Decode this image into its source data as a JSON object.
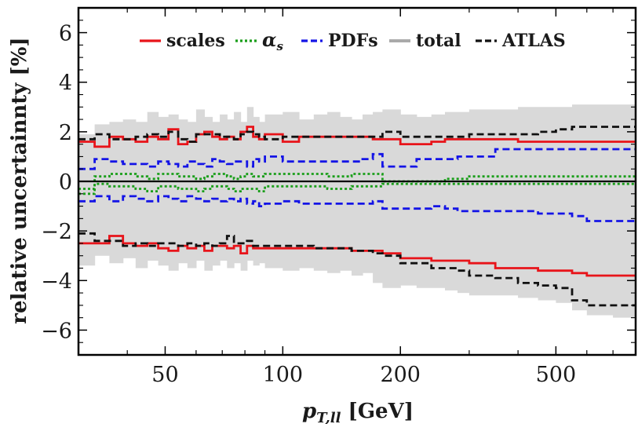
{
  "chart_data": {
    "type": "line",
    "xlabel": "p_T,ll [GeV]",
    "xlabel_main": "p",
    "xlabel_sub": "T,ll",
    "xlabel_unit": " [GeV]",
    "ylabel": "relative uncertainnty [%]",
    "xscale": "log",
    "xlim": [
      30,
      800
    ],
    "ylim": [
      -7,
      7
    ],
    "x_ticks": [
      50,
      100,
      200,
      500
    ],
    "x_tick_labels": [
      "50",
      "100",
      "200",
      "500"
    ],
    "y_ticks": [
      -6,
      -4,
      -2,
      0,
      2,
      4,
      6
    ],
    "y_tick_labels": [
      "−6",
      "−4",
      "−2",
      "0",
      "2",
      "4",
      "6"
    ],
    "grid": false,
    "legend_position": "top",
    "bin_edges": [
      30,
      33,
      36,
      39,
      42,
      45,
      48,
      51,
      54,
      57,
      60,
      63,
      66,
      69,
      72,
      75,
      78,
      81,
      84,
      87,
      90,
      100,
      110,
      120,
      130,
      140,
      150,
      160,
      170,
      180,
      200,
      220,
      240,
      260,
      280,
      300,
      350,
      400,
      450,
      500,
      550,
      600,
      700,
      800
    ],
    "series": [
      {
        "name": "total",
        "style": "band",
        "color": "#d9d9d9",
        "upper": [
          1.9,
          2.3,
          2.4,
          2.5,
          2.4,
          2.8,
          2.6,
          2.7,
          2.5,
          2.4,
          2.9,
          2.6,
          2.4,
          2.7,
          2.5,
          2.8,
          2.4,
          3.0,
          2.6,
          2.4,
          2.7,
          2.8,
          2.5,
          2.7,
          2.8,
          2.6,
          2.5,
          2.7,
          2.8,
          2.9,
          2.7,
          2.6,
          2.7,
          2.8,
          2.8,
          2.9,
          2.9,
          3.0,
          3.0,
          3.0,
          3.1,
          3.1,
          3.1
        ],
        "lower": [
          -3.4,
          -3.0,
          -3.3,
          -3.1,
          -3.5,
          -3.2,
          -3.4,
          -3.6,
          -3.3,
          -3.5,
          -3.2,
          -3.6,
          -3.4,
          -3.2,
          -3.5,
          -3.3,
          -3.6,
          -3.2,
          -3.4,
          -3.3,
          -3.5,
          -3.6,
          -3.5,
          -3.6,
          -3.7,
          -3.6,
          -3.8,
          -3.7,
          -4.1,
          -4.3,
          -4.2,
          -4.3,
          -4.3,
          -4.4,
          -4.5,
          -4.6,
          -4.6,
          -4.7,
          -4.8,
          -4.9,
          -5.2,
          -5.4,
          -5.5
        ]
      },
      {
        "name": "scales",
        "style": "solid",
        "color": "#e8141a",
        "upper": [
          1.6,
          1.4,
          1.8,
          1.7,
          1.6,
          1.8,
          1.7,
          2.1,
          1.5,
          1.6,
          1.9,
          2.0,
          1.8,
          1.7,
          1.8,
          1.7,
          2.0,
          2.2,
          1.8,
          1.7,
          1.9,
          1.6,
          1.8,
          1.8,
          1.8,
          1.8,
          1.8,
          1.8,
          1.7,
          1.7,
          1.5,
          1.5,
          1.6,
          1.7,
          1.7,
          1.7,
          1.7,
          1.6,
          1.6,
          1.6,
          1.6,
          1.6,
          1.6
        ],
        "lower": [
          -2.5,
          -2.5,
          -2.2,
          -2.5,
          -2.6,
          -2.5,
          -2.7,
          -2.8,
          -2.6,
          -2.7,
          -2.6,
          -2.8,
          -2.6,
          -2.6,
          -2.7,
          -2.6,
          -2.9,
          -2.6,
          -2.7,
          -2.7,
          -2.7,
          -2.7,
          -2.7,
          -2.7,
          -2.7,
          -2.7,
          -2.8,
          -2.8,
          -2.8,
          -2.9,
          -3.1,
          -3.1,
          -3.2,
          -3.2,
          -3.2,
          -3.3,
          -3.5,
          -3.5,
          -3.6,
          -3.6,
          -3.7,
          -3.8,
          -3.8
        ]
      },
      {
        "name": "αs",
        "style": "dotted",
        "color": "#1a9e1a",
        "upper": [
          -0.3,
          0.2,
          0.3,
          0.3,
          0.2,
          0.1,
          0.3,
          0.3,
          0.2,
          0.2,
          0.1,
          0.2,
          0.3,
          0.3,
          0.2,
          0.1,
          0.2,
          0.3,
          0.2,
          0.2,
          0.3,
          0.3,
          0.3,
          0.3,
          0.2,
          0.2,
          0.3,
          0.3,
          0.3,
          0.0,
          0.0,
          0.0,
          0.0,
          0.1,
          0.1,
          0.2,
          0.2,
          0.2,
          0.2,
          0.2,
          0.2,
          0.2,
          0.2
        ],
        "lower": [
          -0.5,
          -0.1,
          -0.2,
          -0.2,
          -0.3,
          -0.4,
          -0.2,
          -0.2,
          -0.3,
          -0.3,
          -0.4,
          -0.3,
          -0.2,
          -0.2,
          -0.3,
          -0.4,
          -0.3,
          -0.3,
          -0.3,
          -0.4,
          -0.2,
          -0.2,
          -0.2,
          -0.2,
          -0.3,
          -0.3,
          -0.2,
          -0.2,
          -0.2,
          -0.1,
          -0.1,
          -0.1,
          -0.1,
          -0.1,
          -0.1,
          -0.1,
          -0.1,
          -0.1,
          -0.1,
          -0.1,
          -0.1,
          -0.1,
          -0.1
        ]
      },
      {
        "name": "PDFs",
        "style": "dashed",
        "color": "#1414e6",
        "upper": [
          0.5,
          0.9,
          0.8,
          0.7,
          0.7,
          0.6,
          0.8,
          0.7,
          0.6,
          0.8,
          0.7,
          0.6,
          0.9,
          0.8,
          0.7,
          0.8,
          0.8,
          0.6,
          0.9,
          0.8,
          1.0,
          0.8,
          0.8,
          0.8,
          0.8,
          0.8,
          0.8,
          0.9,
          1.1,
          0.6,
          0.6,
          0.9,
          0.9,
          0.9,
          1.0,
          1.0,
          1.3,
          1.3,
          1.3,
          1.3,
          1.3,
          1.3,
          1.3
        ],
        "lower": [
          -0.8,
          -0.6,
          -0.8,
          -0.6,
          -0.7,
          -0.8,
          -0.6,
          -0.7,
          -0.8,
          -0.6,
          -0.7,
          -0.8,
          -0.7,
          -0.8,
          -0.7,
          -0.8,
          -0.7,
          -0.9,
          -0.8,
          -1.0,
          -0.9,
          -0.8,
          -0.9,
          -0.9,
          -0.9,
          -0.9,
          -0.9,
          -0.9,
          -0.8,
          -1.1,
          -1.1,
          -1.1,
          -1.0,
          -1.1,
          -1.2,
          -1.2,
          -1.2,
          -1.2,
          -1.3,
          -1.3,
          -1.4,
          -1.6,
          -1.6
        ]
      },
      {
        "name": "ATLAS",
        "style": "dashed",
        "color": "#111111",
        "upper": [
          1.7,
          1.9,
          1.7,
          1.7,
          1.8,
          1.9,
          1.8,
          2.0,
          1.7,
          1.6,
          1.9,
          1.9,
          1.9,
          1.8,
          1.8,
          1.7,
          1.9,
          2.0,
          1.9,
          1.8,
          1.7,
          1.8,
          1.8,
          1.8,
          1.8,
          1.8,
          1.8,
          1.8,
          1.8,
          2.0,
          1.8,
          1.8,
          1.8,
          1.8,
          1.8,
          1.9,
          1.9,
          1.9,
          2.0,
          2.1,
          2.2,
          2.2,
          2.2
        ],
        "lower": [
          -2.1,
          -2.4,
          -2.4,
          -2.6,
          -2.5,
          -2.6,
          -2.5,
          -2.5,
          -2.6,
          -2.5,
          -2.6,
          -2.5,
          -2.6,
          -2.5,
          -2.2,
          -2.5,
          -2.5,
          -2.4,
          -2.6,
          -2.6,
          -2.6,
          -2.6,
          -2.6,
          -2.7,
          -2.7,
          -2.7,
          -2.8,
          -2.8,
          -2.9,
          -3.0,
          -3.3,
          -3.3,
          -3.5,
          -3.5,
          -3.6,
          -3.8,
          -3.9,
          -4.1,
          -4.2,
          -4.3,
          -4.8,
          -5.0,
          -5.0
        ]
      }
    ]
  }
}
